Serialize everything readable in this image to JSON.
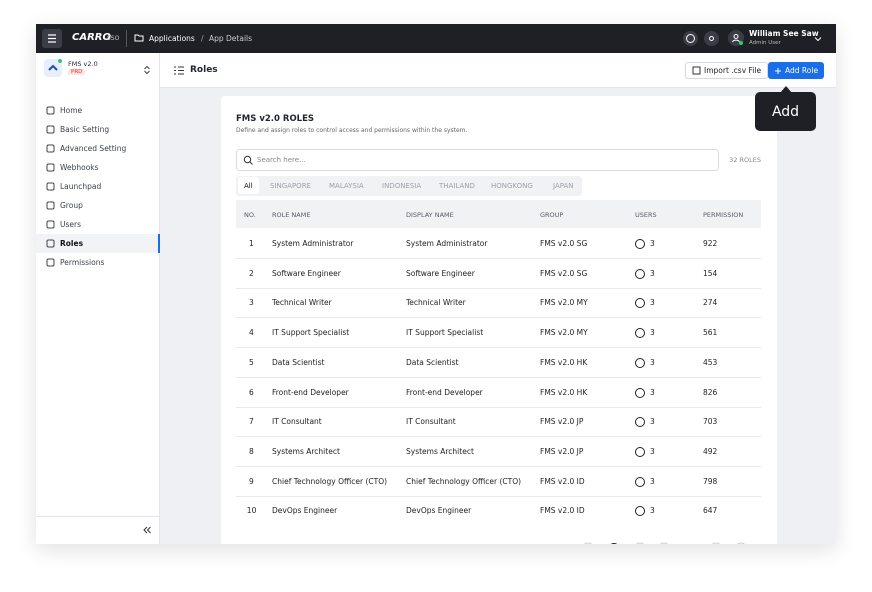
{
  "topbar": {
    "brand": "CARRO",
    "brand_suffix": "SSO",
    "breadcrumb": [
      "Applications",
      "App Details"
    ],
    "separator": "/",
    "user_name": "William See Saw",
    "user_role": "Admin User"
  },
  "app_selector": {
    "name": "FMS v2.0",
    "env": "PRD"
  },
  "nav": [
    "Home",
    "Basic Setting",
    "Advanced Setting",
    "Webhooks",
    "Launchpad",
    "Group",
    "Users",
    "Roles",
    "Permissions"
  ],
  "header": {
    "title": "Roles",
    "import_button": "Import .csv File",
    "add_button": "Add Role",
    "tooltip": "Add"
  },
  "card": {
    "title": "FMS v2.0 ROLES",
    "description": "Define and assign roles to control access and permissions within the system.",
    "search_placeholder": "Search here...",
    "count": "32 ROLES",
    "tabs": [
      "All",
      "SINGAPORE",
      "MALAYSIA",
      "INDONESIA",
      "THAILAND",
      "HONGKONG",
      "JAPAN"
    ]
  },
  "table": {
    "columns": [
      "NO.",
      "ROLE NAME",
      "DISPLAY NAME",
      "GROUP",
      "USERS",
      "PERMISSION"
    ],
    "rows": [
      [
        "1",
        "System Administrator",
        "System Administrator",
        "FMS v2.0 SG",
        "3",
        "922"
      ],
      [
        "2",
        "Software Engineer",
        "Software Engineer",
        "FMS v2.0 SG",
        "3",
        "154"
      ],
      [
        "3",
        "Technical Writer",
        "Technical Writer",
        "FMS v2.0 MY",
        "3",
        "274"
      ],
      [
        "4",
        "IT Support Specialist",
        "IT Support Specialist",
        "FMS v2.0 MY",
        "3",
        "561"
      ],
      [
        "5",
        "Data Scientist",
        "Data Scientist",
        "FMS v2.0 HK",
        "3",
        "453"
      ],
      [
        "6",
        "Front-end Developer",
        "Front-end Developer",
        "FMS v2.0 HK",
        "3",
        "826"
      ],
      [
        "7",
        "IT Consultant",
        "IT Consultant",
        "FMS v2.0 JP",
        "3",
        "703"
      ],
      [
        "8",
        "Systems Architect",
        "Systems Architect",
        "FMS v2.0 JP",
        "3",
        "492"
      ],
      [
        "9",
        "Chief Technology Officer (CTO)",
        "Chief Technology Officer (CTO)",
        "FMS v2.0 ID",
        "3",
        "798"
      ],
      [
        "10",
        "DevOps Engineer",
        "DevOps Engineer",
        "FMS v2.0 ID",
        "3",
        "647"
      ]
    ]
  }
}
